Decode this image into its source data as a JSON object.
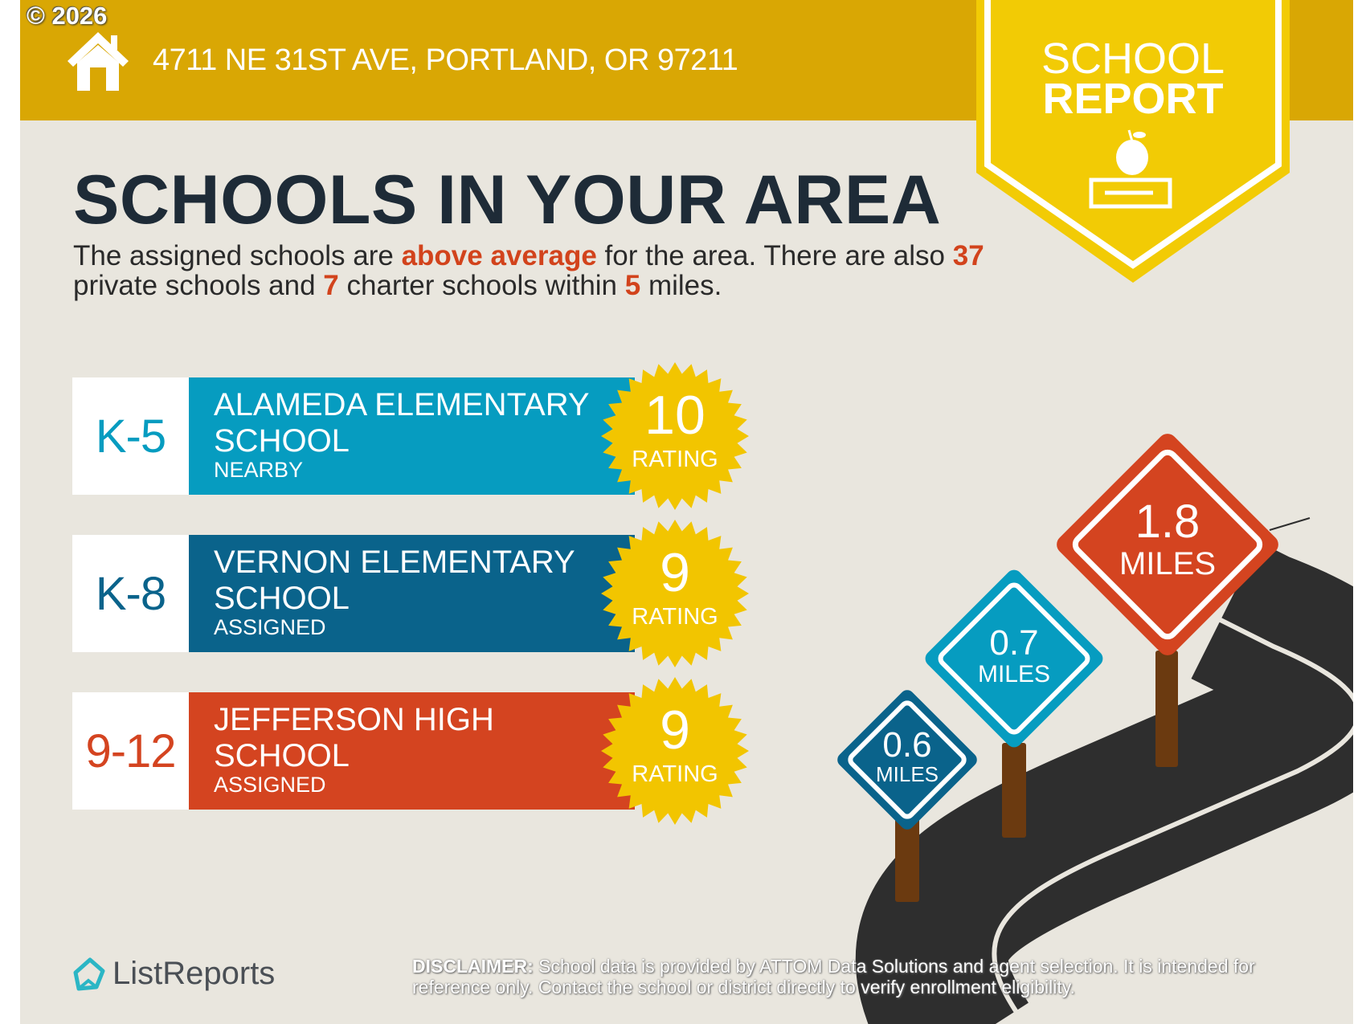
{
  "copyright": "© 2026",
  "header": {
    "address": "4711 NE 31ST AVE, PORTLAND, OR 97211",
    "icon": "house-icon"
  },
  "badge": {
    "line1": "SCHOOL",
    "line2": "REPORT",
    "icon": "apple-on-book-icon"
  },
  "title": "SCHOOLS IN YOUR AREA",
  "summary": {
    "t1": "The assigned schools are ",
    "h1": "above average",
    "t2": " for the area. There are also ",
    "h2": "37",
    "t3": " private schools and ",
    "h3": "7",
    "t4": " charter schools within ",
    "h4": "5",
    "t5": " miles."
  },
  "schools": [
    {
      "grades": "K-5",
      "name": "ALAMEDA ELEMENTARY SCHOOL",
      "tag": "NEARBY",
      "rating": "10",
      "rating_label": "RATING",
      "distance": "0.7",
      "distance_unit": "MILES",
      "color": "#069CC0"
    },
    {
      "grades": "K-8",
      "name": "VERNON ELEMENTARY SCHOOL",
      "tag": "ASSIGNED",
      "rating": "9",
      "rating_label": "RATING",
      "distance": "0.6",
      "distance_unit": "MILES",
      "color": "#0A638B"
    },
    {
      "grades": "9-12",
      "name": "JEFFERSON HIGH SCHOOL",
      "tag": "ASSIGNED",
      "rating": "9",
      "rating_label": "RATING",
      "distance": "1.8",
      "distance_unit": "MILES",
      "color": "#D44420"
    }
  ],
  "footer": {
    "logo": "ListReports",
    "disclaimer_label": "DISCLAIMER:",
    "disclaimer": " School data is provided by ATTOM Data Solutions and agent selection. It is intended for reference only. Contact the school or district directly to verify enrollment eligibility."
  },
  "colors": {
    "banner": "#D9A704",
    "badge": "#F2CB05",
    "seal": "#F2C500",
    "background": "#E9E6DE",
    "accent": "#D2431C",
    "title": "#1E2B37"
  }
}
